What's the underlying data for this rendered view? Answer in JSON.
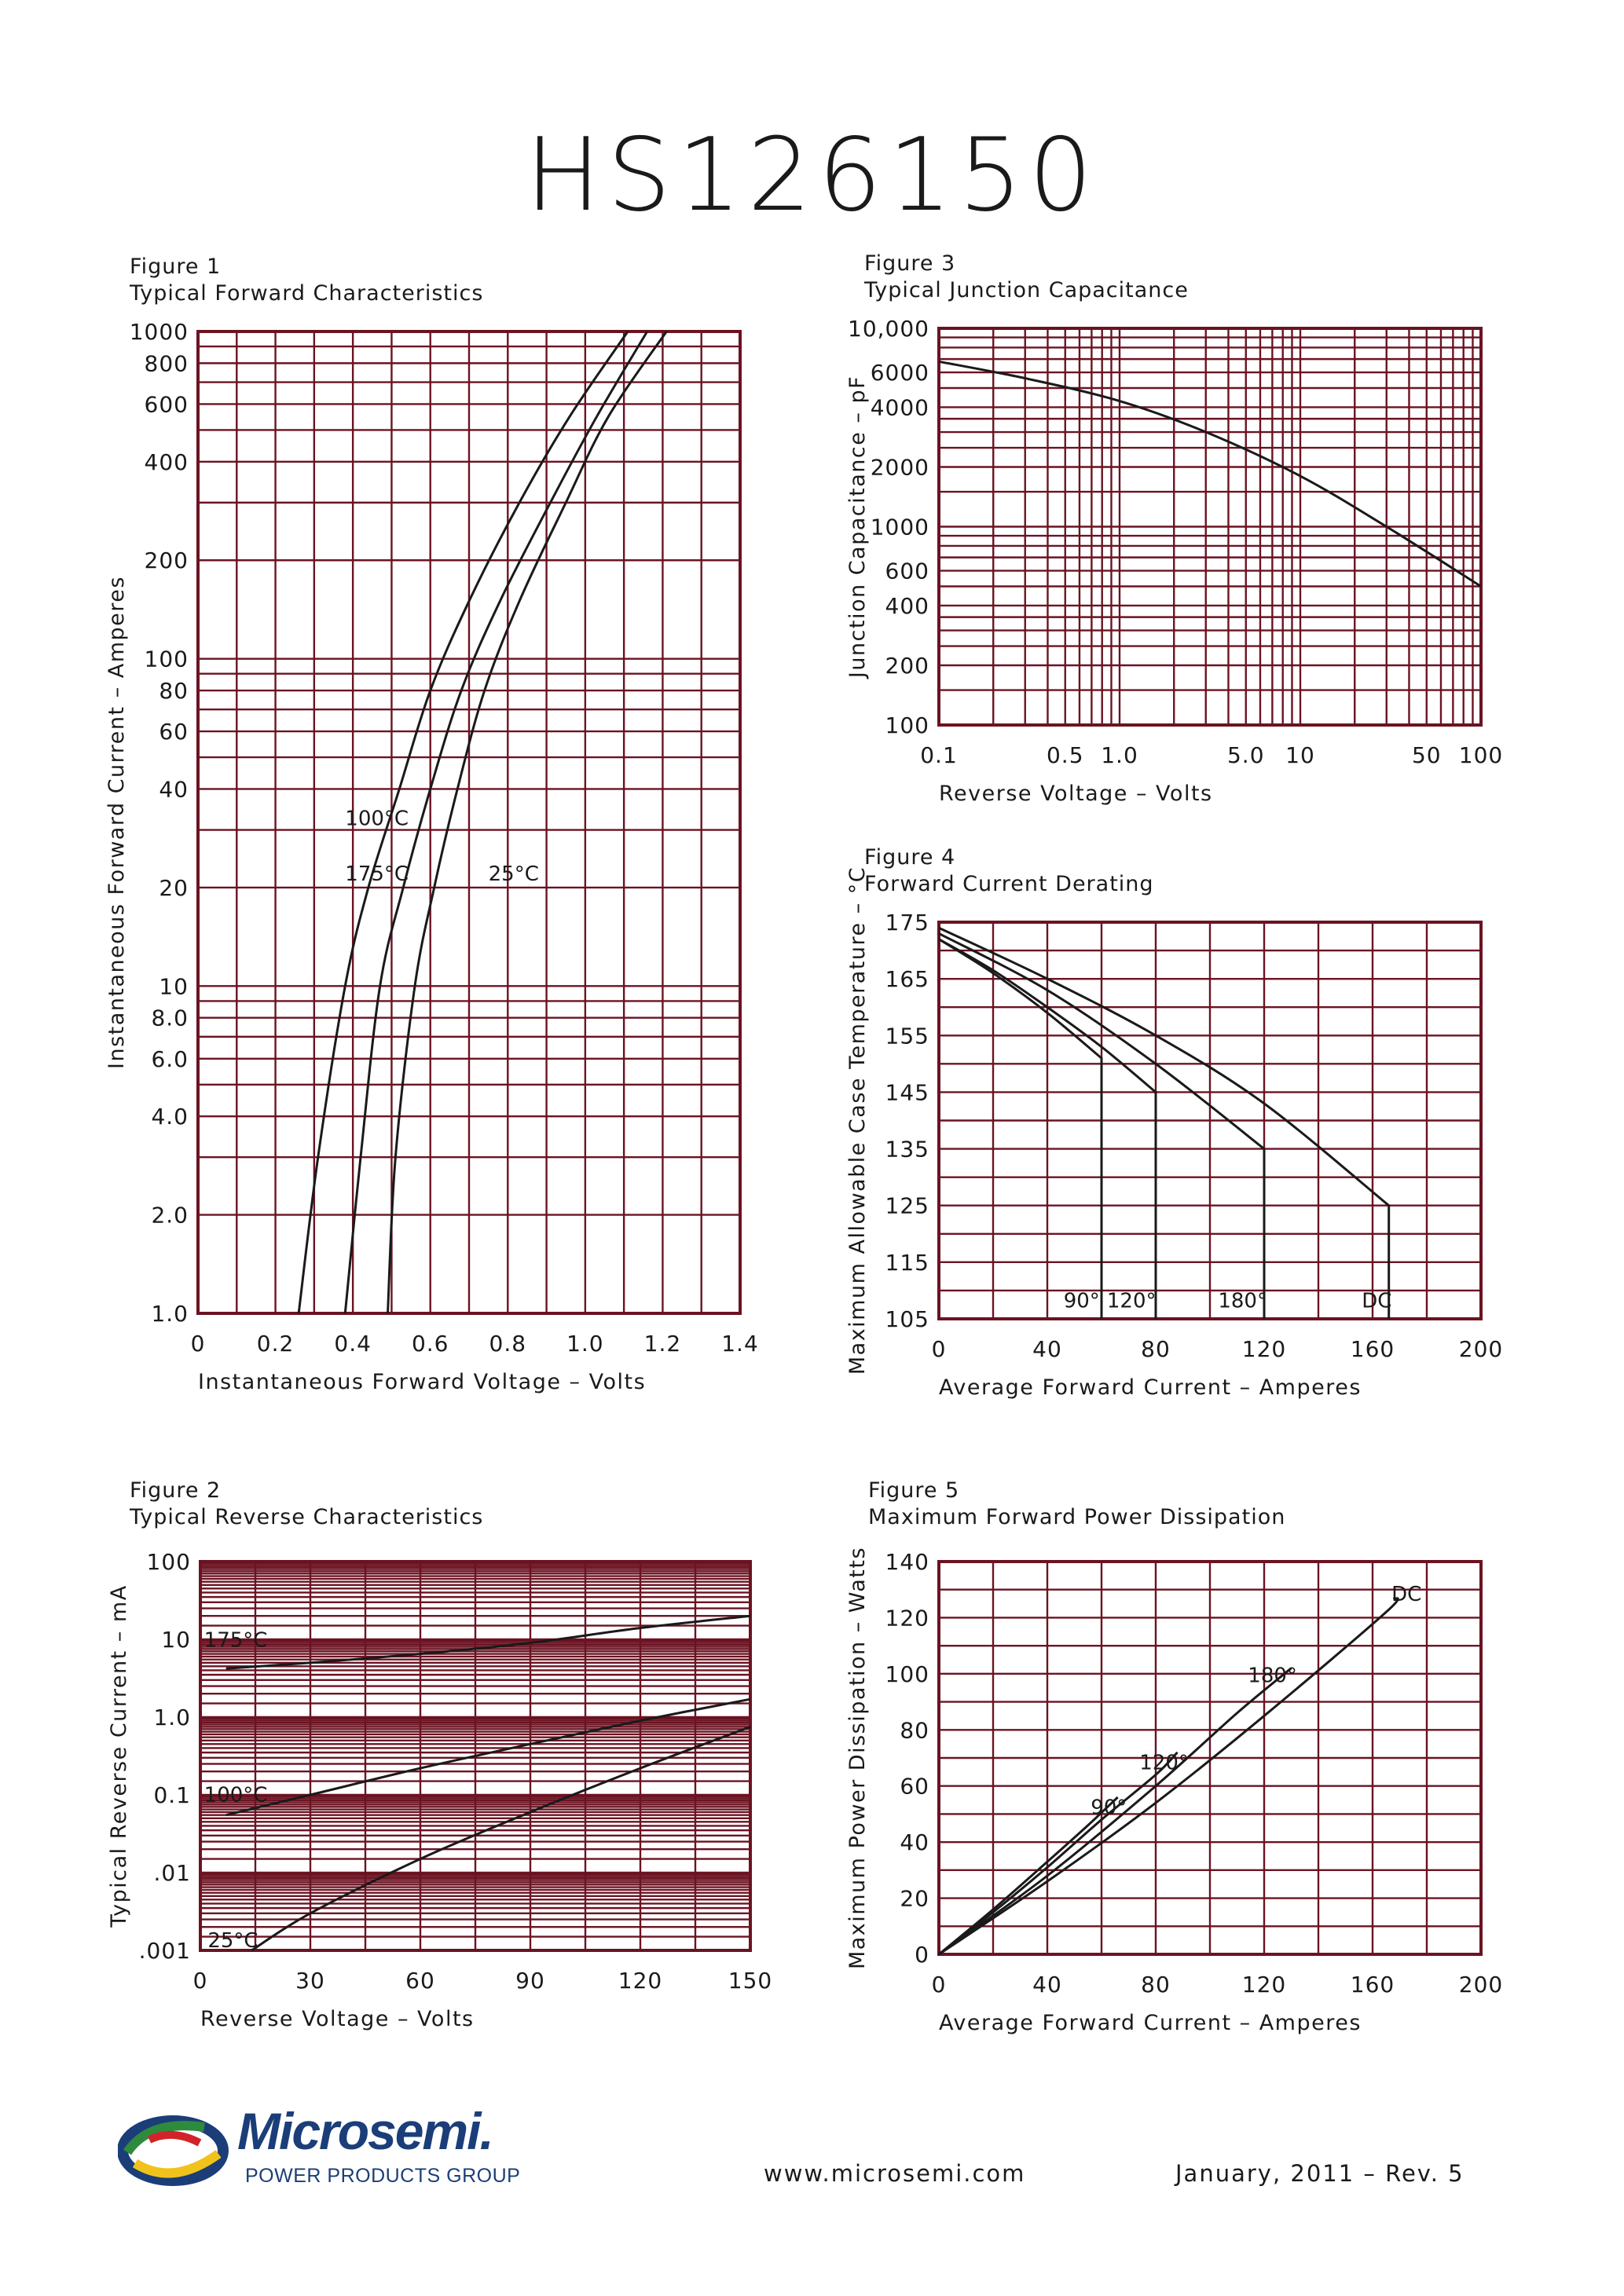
{
  "title": "HS126150",
  "colors": {
    "grid": "#6b1322",
    "curve": "#1a1a1a",
    "text": "#1a1a1a",
    "logo": "#1b3e78"
  },
  "footer": {
    "logo_word": "Microsemi.",
    "logo_sub": "POWER PRODUCTS GROUP",
    "url": "www.microsemi.com",
    "date": "January, 2011 – Rev. 5"
  },
  "chart_data": [
    {
      "id": "fig1",
      "type": "line",
      "figure_no": "Figure 1",
      "title": "Typical Forward Characteristics",
      "xlabel": "Instantaneous Forward Voltage – Volts",
      "ylabel": "Instantaneous Forward Current – Amperes",
      "xlim": [
        0,
        1.4
      ],
      "ylim": [
        1,
        1000
      ],
      "yscale": "log",
      "grid": true,
      "x_ticks": [
        {
          "v": 0,
          "label": "0"
        },
        {
          "v": 0.2,
          "label": "0.2"
        },
        {
          "v": 0.4,
          "label": "0.4"
        },
        {
          "v": 0.6,
          "label": "0.6"
        },
        {
          "v": 0.8,
          "label": "0.8"
        },
        {
          "v": 1.0,
          "label": "1.0"
        },
        {
          "v": 1.2,
          "label": "1.2"
        },
        {
          "v": 1.4,
          "label": "1.4"
        }
      ],
      "y_ticks": [
        {
          "v": 1,
          "label": "1.0"
        },
        {
          "v": 2,
          "label": "2.0"
        },
        {
          "v": 4,
          "label": "4.0"
        },
        {
          "v": 6,
          "label": "6.0"
        },
        {
          "v": 8,
          "label": "8.0"
        },
        {
          "v": 10,
          "label": "10"
        },
        {
          "v": 20,
          "label": "20"
        },
        {
          "v": 40,
          "label": "40"
        },
        {
          "v": 60,
          "label": "60"
        },
        {
          "v": 80,
          "label": "80"
        },
        {
          "v": 100,
          "label": "100"
        },
        {
          "v": 200,
          "label": "200"
        },
        {
          "v": 400,
          "label": "400"
        },
        {
          "v": 600,
          "label": "600"
        },
        {
          "v": 800,
          "label": "800"
        },
        {
          "v": 1000,
          "label": "1000"
        }
      ],
      "series": [
        {
          "name": "175°C",
          "points": [
            [
              0.26,
              1
            ],
            [
              0.31,
              3
            ],
            [
              0.38,
              10
            ],
            [
              0.44,
              20
            ],
            [
              0.52,
              40
            ],
            [
              0.6,
              80
            ],
            [
              0.7,
              150
            ],
            [
              0.83,
              300
            ],
            [
              0.96,
              550
            ],
            [
              1.11,
              1000
            ]
          ]
        },
        {
          "name": "100°C",
          "points": [
            [
              0.38,
              1
            ],
            [
              0.42,
              3
            ],
            [
              0.47,
              10
            ],
            [
              0.53,
              20
            ],
            [
              0.6,
              40
            ],
            [
              0.68,
              80
            ],
            [
              0.78,
              150
            ],
            [
              0.91,
              300
            ],
            [
              1.03,
              550
            ],
            [
              1.16,
              1000
            ]
          ]
        },
        {
          "name": "25°C",
          "points": [
            [
              0.49,
              1
            ],
            [
              0.51,
              3
            ],
            [
              0.56,
              10
            ],
            [
              0.61,
              20
            ],
            [
              0.67,
              40
            ],
            [
              0.74,
              80
            ],
            [
              0.83,
              150
            ],
            [
              0.95,
              300
            ],
            [
              1.06,
              550
            ],
            [
              1.21,
              1000
            ]
          ]
        }
      ],
      "annotations": [
        {
          "text": "100°C",
          "x": 0.38,
          "y": 31
        },
        {
          "text": "175°C",
          "x": 0.38,
          "y": 21
        },
        {
          "text": "25°C",
          "x": 0.75,
          "y": 21
        }
      ]
    },
    {
      "id": "fig2",
      "type": "line",
      "figure_no": "Figure 2",
      "title": "Typical Reverse Characteristics",
      "xlabel": "Reverse Voltage – Volts",
      "ylabel": "Typical Reverse Current – mA",
      "xlim": [
        0,
        150
      ],
      "ylim": [
        0.001,
        100
      ],
      "yscale": "log",
      "grid": true,
      "x_ticks": [
        {
          "v": 0,
          "label": "0"
        },
        {
          "v": 30,
          "label": "30"
        },
        {
          "v": 60,
          "label": "60"
        },
        {
          "v": 90,
          "label": "90"
        },
        {
          "v": 120,
          "label": "120"
        },
        {
          "v": 150,
          "label": "150"
        }
      ],
      "y_ticks": [
        {
          "v": 0.001,
          "label": ".001"
        },
        {
          "v": 0.01,
          "label": ".01"
        },
        {
          "v": 0.1,
          "label": "0.1"
        },
        {
          "v": 1,
          "label": "1.0"
        },
        {
          "v": 10,
          "label": "10"
        },
        {
          "v": 100,
          "label": "100"
        }
      ],
      "series": [
        {
          "name": "175°C",
          "points": [
            [
              7,
              4.2
            ],
            [
              30,
              5.0
            ],
            [
              60,
              6.5
            ],
            [
              90,
              9
            ],
            [
              120,
              14
            ],
            [
              150,
              20
            ]
          ]
        },
        {
          "name": "100°C",
          "points": [
            [
              7,
              0.055
            ],
            [
              30,
              0.1
            ],
            [
              60,
              0.22
            ],
            [
              90,
              0.45
            ],
            [
              120,
              0.9
            ],
            [
              150,
              1.7
            ]
          ]
        },
        {
          "name": "25°C",
          "points": [
            [
              14,
              0.001
            ],
            [
              30,
              0.003
            ],
            [
              60,
              0.015
            ],
            [
              90,
              0.06
            ],
            [
              120,
              0.22
            ],
            [
              150,
              0.75
            ]
          ]
        }
      ],
      "annotations": [
        {
          "text": "175°C",
          "x": 1,
          "y": 8
        },
        {
          "text": "100°C",
          "x": 1,
          "y": 0.082
        },
        {
          "text": "25°C",
          "x": 2,
          "y": 0.0011
        }
      ]
    },
    {
      "id": "fig3",
      "type": "line",
      "figure_no": "Figure 3",
      "title": "Typical Junction Capacitance",
      "xlabel": "Reverse Voltage – Volts",
      "ylabel": "Junction Capacitance – pF",
      "xlim": [
        0.1,
        100
      ],
      "ylim": [
        100,
        10000
      ],
      "xscale": "log",
      "yscale": "log",
      "grid": true,
      "x_ticks": [
        {
          "v": 0.1,
          "label": "0.1"
        },
        {
          "v": 0.5,
          "label": "0.5"
        },
        {
          "v": 1.0,
          "label": "1.0"
        },
        {
          "v": 5.0,
          "label": "5.0"
        },
        {
          "v": 10,
          "label": "10"
        },
        {
          "v": 50,
          "label": "50"
        },
        {
          "v": 100,
          "label": "100"
        }
      ],
      "y_ticks": [
        {
          "v": 100,
          "label": "100"
        },
        {
          "v": 200,
          "label": "200"
        },
        {
          "v": 400,
          "label": "400"
        },
        {
          "v": 600,
          "label": "600"
        },
        {
          "v": 1000,
          "label": "1000"
        },
        {
          "v": 2000,
          "label": "2000"
        },
        {
          "v": 4000,
          "label": "4000"
        },
        {
          "v": 6000,
          "label": "6000"
        },
        {
          "v": 10000,
          "label": "10,000"
        }
      ],
      "series": [
        {
          "name": "Cj",
          "points": [
            [
              0.1,
              6800
            ],
            [
              0.3,
              5600
            ],
            [
              1,
              4300
            ],
            [
              3,
              3000
            ],
            [
              10,
              1800
            ],
            [
              30,
              1000
            ],
            [
              100,
              500
            ]
          ]
        }
      ]
    },
    {
      "id": "fig4",
      "type": "line",
      "figure_no": "Figure 4",
      "title": "Forward Current Derating",
      "xlabel": "Average Forward Current – Amperes",
      "ylabel": "Maximum Allowable Case Temperature – °C",
      "xlim": [
        0,
        200
      ],
      "ylim": [
        105,
        175
      ],
      "grid": true,
      "x_ticks": [
        {
          "v": 0,
          "label": "0"
        },
        {
          "v": 40,
          "label": "40"
        },
        {
          "v": 80,
          "label": "80"
        },
        {
          "v": 120,
          "label": "120"
        },
        {
          "v": 160,
          "label": "160"
        },
        {
          "v": 200,
          "label": "200"
        }
      ],
      "y_ticks": [
        {
          "v": 105,
          "label": "105"
        },
        {
          "v": 115,
          "label": "115"
        },
        {
          "v": 125,
          "label": "125"
        },
        {
          "v": 135,
          "label": "135"
        },
        {
          "v": 145,
          "label": "145"
        },
        {
          "v": 155,
          "label": "155"
        },
        {
          "v": 165,
          "label": "165"
        },
        {
          "v": 175,
          "label": "175"
        }
      ],
      "series": [
        {
          "name": "90°",
          "points": [
            [
              0,
              172
            ],
            [
              20,
              166
            ],
            [
              40,
              159
            ],
            [
              60,
              151
            ],
            [
              60,
              105
            ]
          ]
        },
        {
          "name": "120°",
          "points": [
            [
              0,
              172
            ],
            [
              20,
              166.5
            ],
            [
              40,
              160
            ],
            [
              60,
              153
            ],
            [
              80,
              145
            ],
            [
              80,
              105
            ]
          ]
        },
        {
          "name": "180°",
          "points": [
            [
              0,
              173
            ],
            [
              40,
              163
            ],
            [
              80,
              150
            ],
            [
              120,
              135
            ],
            [
              120,
              105
            ]
          ]
        },
        {
          "name": "DC",
          "points": [
            [
              0,
              174
            ],
            [
              40,
              165
            ],
            [
              80,
              155
            ],
            [
              120,
              143
            ],
            [
              166,
              125
            ],
            [
              166,
              105
            ]
          ]
        }
      ],
      "annotations": [
        {
          "text": "90°",
          "x": 46,
          "y": 107
        },
        {
          "text": "120°",
          "x": 62,
          "y": 107
        },
        {
          "text": "180°",
          "x": 103,
          "y": 107
        },
        {
          "text": "DC",
          "x": 156,
          "y": 107
        }
      ]
    },
    {
      "id": "fig5",
      "type": "line",
      "figure_no": "Figure 5",
      "title": "Maximum Forward Power Dissipation",
      "xlabel": "Average Forward Current – Amperes",
      "ylabel": "Maximum Power Dissipation – Watts",
      "xlim": [
        0,
        200
      ],
      "ylim": [
        0,
        140
      ],
      "grid": true,
      "x_ticks": [
        {
          "v": 0,
          "label": "0"
        },
        {
          "v": 40,
          "label": "40"
        },
        {
          "v": 80,
          "label": "80"
        },
        {
          "v": 120,
          "label": "120"
        },
        {
          "v": 160,
          "label": "160"
        },
        {
          "v": 200,
          "label": "200"
        }
      ],
      "y_ticks": [
        {
          "v": 0,
          "label": "0"
        },
        {
          "v": 20,
          "label": "20"
        },
        {
          "v": 40,
          "label": "40"
        },
        {
          "v": 60,
          "label": "60"
        },
        {
          "v": 80,
          "label": "80"
        },
        {
          "v": 100,
          "label": "100"
        },
        {
          "v": 120,
          "label": "120"
        },
        {
          "v": 140,
          "label": "140"
        }
      ],
      "series": [
        {
          "name": "90°",
          "points": [
            [
              0,
              0
            ],
            [
              20,
              16
            ],
            [
              40,
              33
            ],
            [
              55,
              46
            ],
            [
              66,
              56
            ]
          ]
        },
        {
          "name": "120°",
          "points": [
            [
              0,
              0
            ],
            [
              20,
              15
            ],
            [
              40,
              31
            ],
            [
              60,
              48
            ],
            [
              80,
              64
            ],
            [
              88,
              72
            ]
          ]
        },
        {
          "name": "180°",
          "points": [
            [
              0,
              0
            ],
            [
              40,
              28
            ],
            [
              80,
              60
            ],
            [
              110,
              86
            ],
            [
              130,
              102
            ]
          ]
        },
        {
          "name": "DC",
          "points": [
            [
              0,
              0
            ],
            [
              40,
              26
            ],
            [
              80,
              54
            ],
            [
              120,
              85
            ],
            [
              165,
              122
            ],
            [
              168,
              127
            ]
          ]
        }
      ],
      "annotations": [
        {
          "text": "90°",
          "x": 56,
          "y": 50
        },
        {
          "text": "120°",
          "x": 74,
          "y": 66
        },
        {
          "text": "180°",
          "x": 114,
          "y": 97
        },
        {
          "text": "DC",
          "x": 167,
          "y": 126
        }
      ]
    }
  ]
}
